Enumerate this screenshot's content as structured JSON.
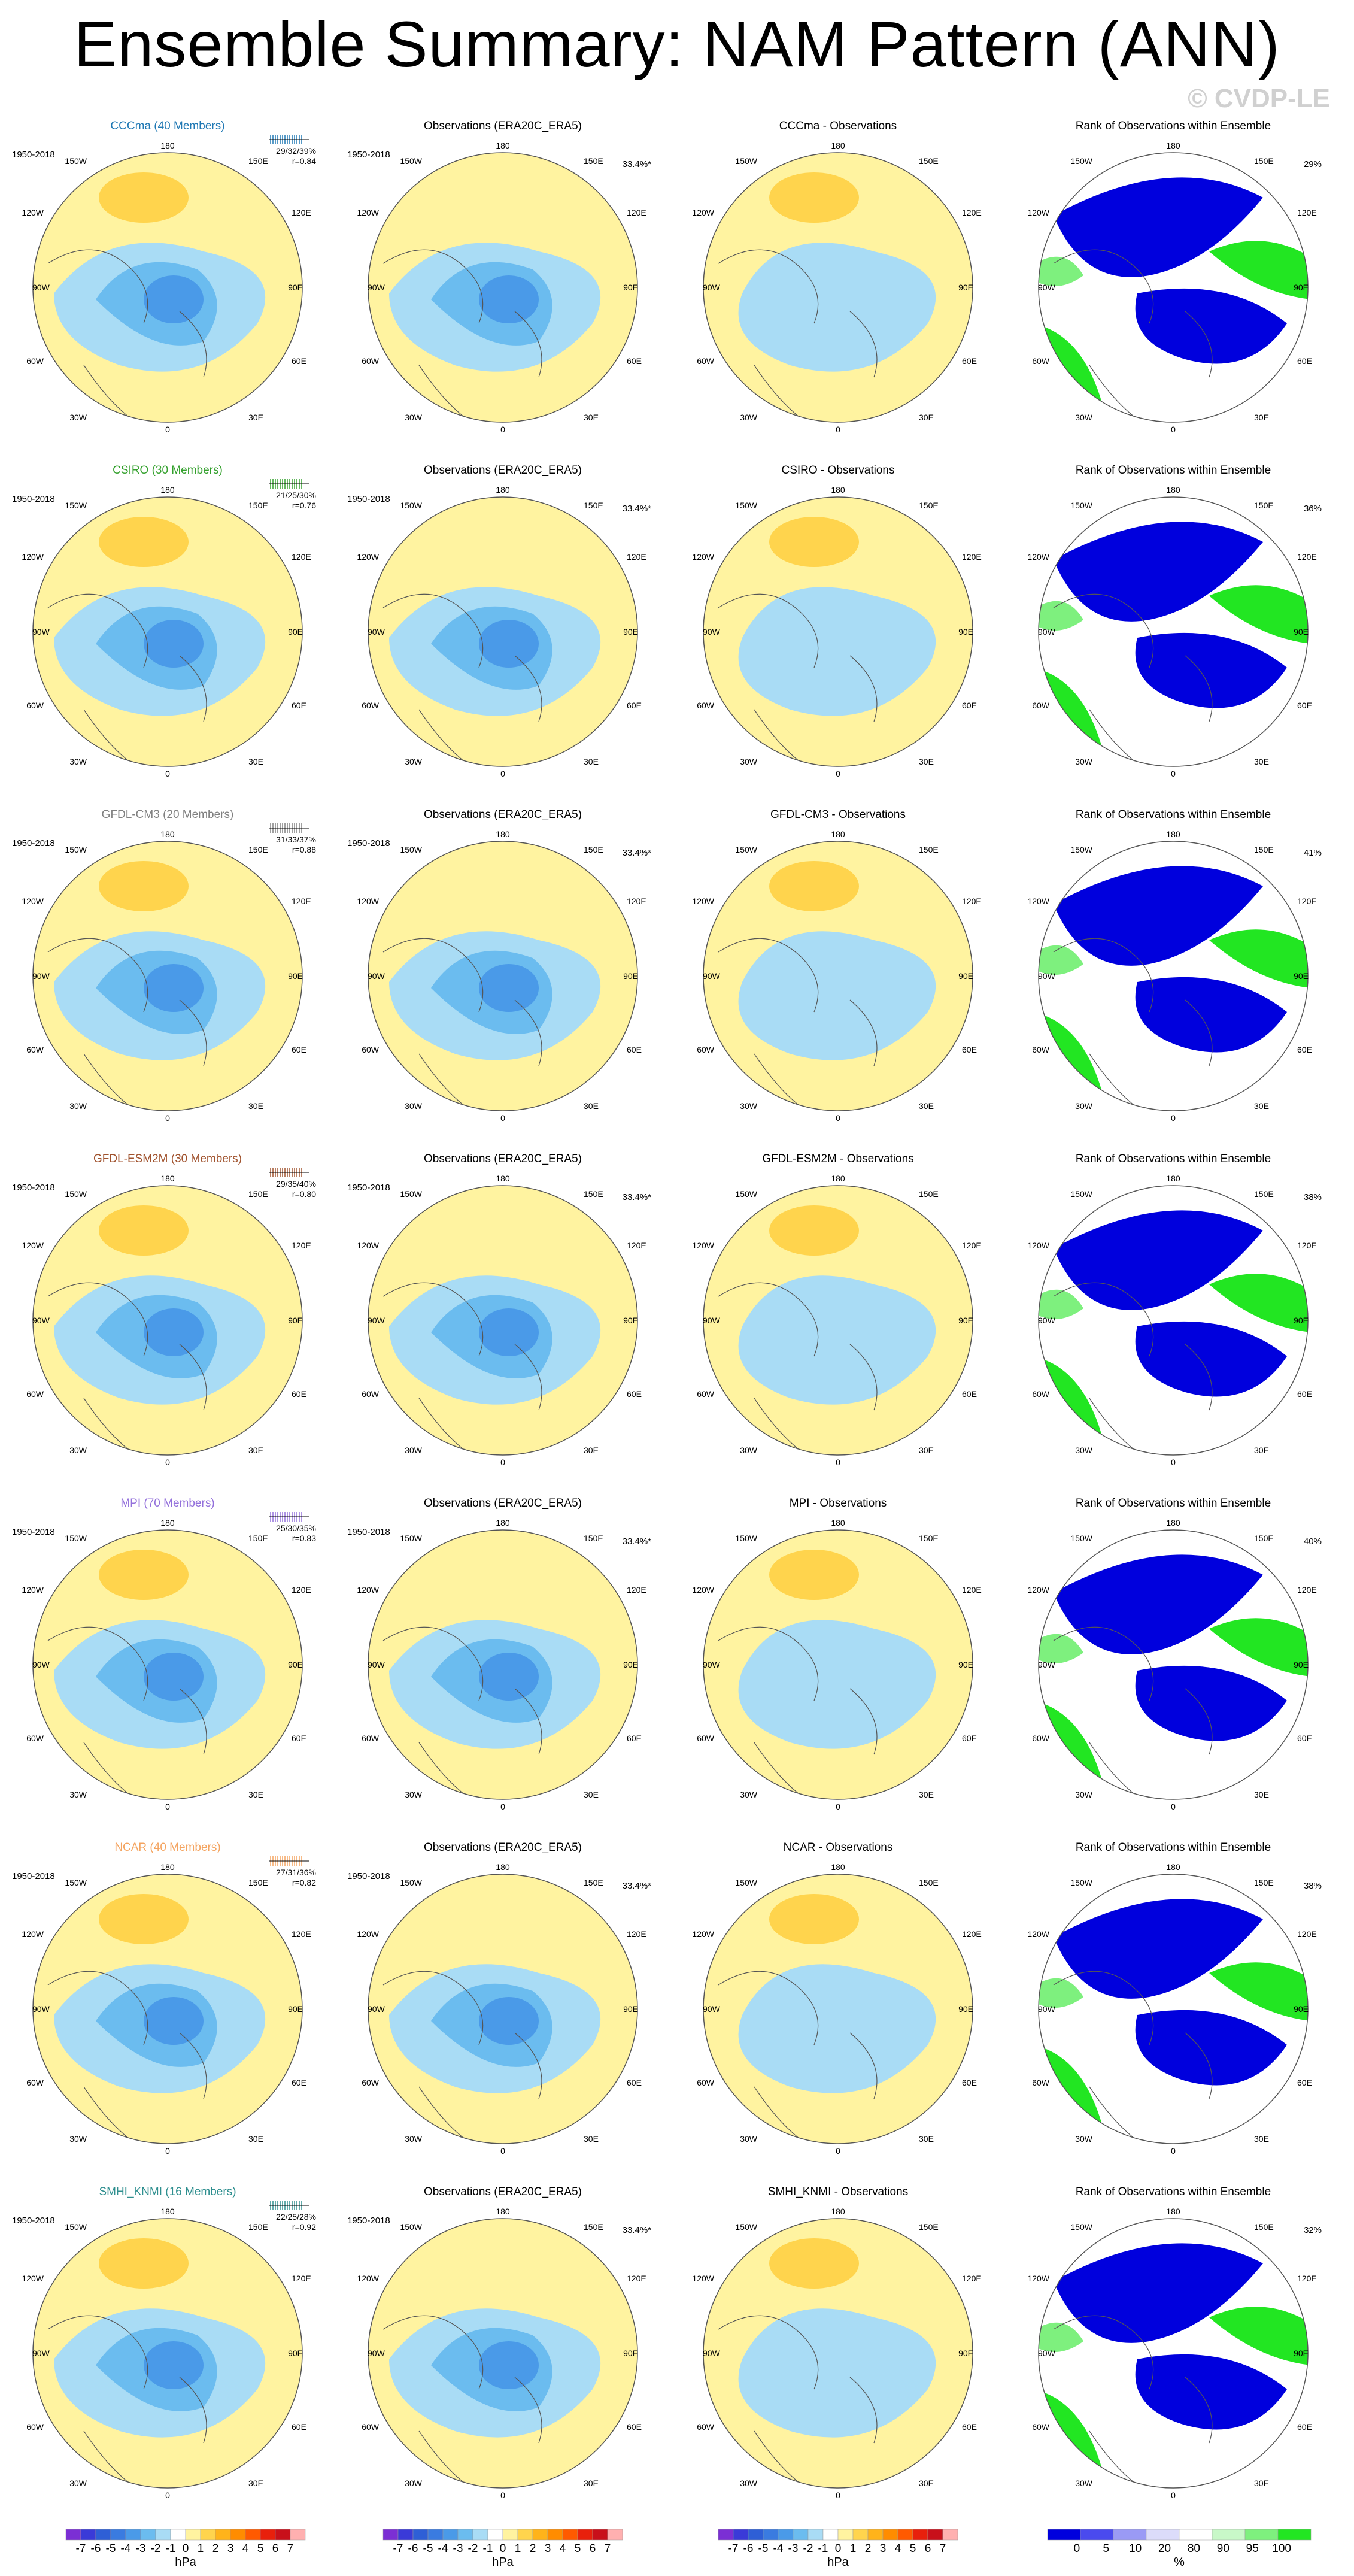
{
  "title": "Ensemble Summary: NAM Pattern (ANN)",
  "watermark": "© CVDP-LE",
  "period": "1950-2018",
  "obs_title": "Observations (ERA20C_ERA5)",
  "obs_pct": "33.4%*",
  "rank_title": "Rank of Observations within Ensemble",
  "lon_labels": {
    "top": "180",
    "bottom": "0",
    "left": "90W",
    "right": "90E",
    "ul": "150W",
    "ur": "150E",
    "ul2": "120W",
    "ur2": "120E",
    "ll": "60W",
    "lr": "60E",
    "ll2": "30W",
    "lr2": "30E"
  },
  "rows": [
    {
      "model": "CCCma (40 Members)",
      "name": "CCCma",
      "color": "#1f78b4",
      "pct": "29/32/39%",
      "r": "r=0.84",
      "diff_title": "CCCma - Observations",
      "rank_pct": "29%"
    },
    {
      "model": "CSIRO (30 Members)",
      "name": "CSIRO",
      "color": "#33a02c",
      "pct": "21/25/30%",
      "r": "r=0.76",
      "diff_title": "CSIRO - Observations",
      "rank_pct": "36%"
    },
    {
      "model": "GFDL-CM3 (20 Members)",
      "name": "GFDL-CM3",
      "color": "#808080",
      "pct": "31/33/37%",
      "r": "r=0.88",
      "diff_title": "GFDL-CM3 - Observations",
      "rank_pct": "41%"
    },
    {
      "model": "GFDL-ESM2M (30 Members)",
      "name": "GFDL-ESM2M",
      "color": "#a0522d",
      "pct": "29/35/40%",
      "r": "r=0.80",
      "diff_title": "GFDL-ESM2M - Observations",
      "rank_pct": "38%"
    },
    {
      "model": "MPI (70 Members)",
      "name": "MPI",
      "color": "#9370db",
      "pct": "25/30/35%",
      "r": "r=0.83",
      "diff_title": "MPI - Observations",
      "rank_pct": "40%"
    },
    {
      "model": "NCAR (40 Members)",
      "name": "NCAR",
      "color": "#f4a460",
      "pct": "27/31/36%",
      "r": "r=0.82",
      "diff_title": "NCAR - Observations",
      "rank_pct": "38%"
    },
    {
      "model": "SMHI_KNMI (16 Members)",
      "name": "SMHI_KNMI",
      "color": "#2f8f8f",
      "pct": "22/25/28%",
      "r": "r=0.92",
      "diff_title": "SMHI_KNMI - Observations",
      "rank_pct": "32%"
    }
  ],
  "hpa_colorbar": {
    "labels": [
      "-7",
      "-6",
      "-5",
      "-4",
      "-3",
      "-2",
      "-1",
      "0",
      "1",
      "2",
      "3",
      "4",
      "5",
      "6",
      "7"
    ],
    "colors": [
      "#7b2fd4",
      "#3a3ad8",
      "#2e5fd6",
      "#3a7be0",
      "#4a9ae8",
      "#6bbcef",
      "#a9dcf5",
      "#ffffff",
      "#fff3a0",
      "#ffd44d",
      "#ffb31a",
      "#ff8c00",
      "#ff5a00",
      "#e8200c",
      "#c8101a",
      "#ffb0b0"
    ],
    "unit": "hPa"
  },
  "rank_colorbar": {
    "labels": [
      "0",
      "5",
      "10",
      "20",
      "80",
      "90",
      "95",
      "100"
    ],
    "colors": [
      "#0000dd",
      "#4a4aee",
      "#9a9af5",
      "#dcdcfa",
      "#ffffff",
      "#c8f8c8",
      "#7ef07e",
      "#22e622"
    ],
    "unit": "%"
  }
}
